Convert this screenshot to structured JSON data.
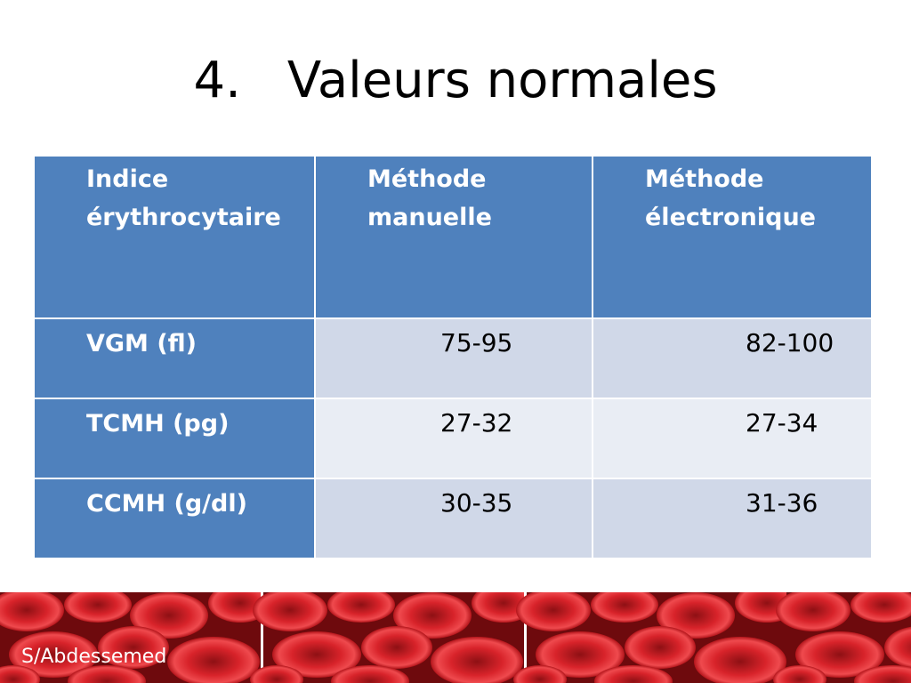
{
  "title": {
    "number": "4.",
    "text": "Valeurs normales"
  },
  "table": {
    "headers": [
      "Indice érythrocytaire",
      "Méthode manuelle",
      "Méthode électronique"
    ],
    "header_lines": [
      [
        "Indice",
        "érythrocytaire"
      ],
      [
        "Méthode",
        "manuelle"
      ],
      [
        "Méthode",
        "électronique"
      ]
    ],
    "rows": [
      {
        "label": "VGM (fl)",
        "manual": "75-95",
        "electronic": "82-100"
      },
      {
        "label": "TCMH (pg)",
        "manual": "27-32",
        "electronic": "27-34"
      },
      {
        "label": "CCMH (g/dl)",
        "manual": "30-35",
        "electronic": "31-36"
      }
    ]
  },
  "footer": {
    "author": "S/Abdessemed"
  },
  "colors": {
    "header_blue": "#4f81bd",
    "row_odd": "#d0d8e8",
    "row_even": "#e9edf4",
    "banner_red": "#b3151b"
  }
}
